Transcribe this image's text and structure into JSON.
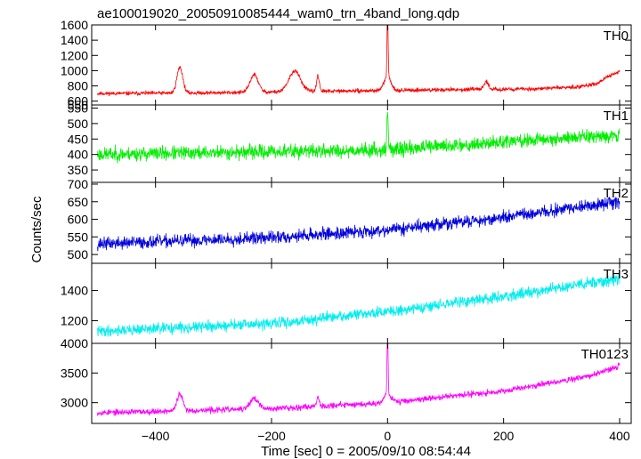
{
  "chart_data": {
    "type": "line",
    "title": "ae100019020_20050910085444_wam0_trn_4band_long.qdp",
    "xlabel": "Time [sec] 0 = 2005/09/10 08:54:44",
    "ylabel": "Counts/sec",
    "xlim": [
      -510,
      420
    ],
    "x_ticks": [
      -400,
      -200,
      0,
      200,
      400
    ],
    "x_tick_labels": [
      "−400",
      "−200",
      "0",
      "200",
      "400"
    ],
    "grid": false,
    "legend": "none",
    "panels": [
      {
        "label": "TH0",
        "color": "#ff0000",
        "ylim": [
          550,
          1600
        ],
        "y_ticks": [
          550,
          600,
          800,
          1000,
          1200,
          1400,
          1600
        ],
        "y_tick_labels": [
          "550",
          "600",
          "800",
          "1000",
          "1200",
          "1400",
          "1600"
        ],
        "baseline": [
          [
            -500,
            700
          ],
          [
            -300,
            710
          ],
          [
            -100,
            730
          ],
          [
            100,
            750
          ],
          [
            250,
            760
          ],
          [
            330,
            790
          ],
          [
            360,
            830
          ],
          [
            390,
            960
          ],
          [
            400,
            990
          ]
        ],
        "noise": 28,
        "features": [
          [
            -358,
            340,
            5
          ],
          [
            -230,
            230,
            7
          ],
          [
            -160,
            270,
            10
          ],
          [
            -120,
            200,
            2.5
          ],
          [
            0,
            900,
            0.9
          ],
          [
            0,
            180,
            6
          ],
          [
            170,
            100,
            4
          ]
        ],
        "seed": 11
      },
      {
        "label": "TH1",
        "color": "#00ee00",
        "ylim": [
          310,
          560
        ],
        "y_ticks": [
          350,
          400,
          450,
          500,
          550
        ],
        "y_tick_labels": [
          "350",
          "400",
          "450",
          "500",
          "550"
        ],
        "baseline": [
          [
            -500,
            400
          ],
          [
            0,
            415
          ],
          [
            200,
            440
          ],
          [
            400,
            465
          ]
        ],
        "noise": 25,
        "features": [
          [
            0,
            120,
            1.2
          ]
        ],
        "seed": 23
      },
      {
        "label": "TH2",
        "color": "#0000dd",
        "ylim": [
          475,
          705
        ],
        "y_ticks": [
          500,
          550,
          600,
          650,
          700
        ],
        "y_tick_labels": [
          "500",
          "550",
          "600",
          "650",
          "700"
        ],
        "baseline": [
          [
            -500,
            530
          ],
          [
            -200,
            548
          ],
          [
            0,
            570
          ],
          [
            200,
            605
          ],
          [
            400,
            650
          ]
        ],
        "noise": 20,
        "features": [],
        "seed": 37
      },
      {
        "label": "TH3",
        "color": "#00eeee",
        "ylim": [
          1050,
          1580
        ],
        "y_ticks": [
          1200,
          1400
        ],
        "y_tick_labels": [
          "1200",
          "1400"
        ],
        "baseline": [
          [
            -500,
            1130
          ],
          [
            -200,
            1180
          ],
          [
            0,
            1260
          ],
          [
            200,
            1360
          ],
          [
            400,
            1480
          ]
        ],
        "noise": 40,
        "features": [],
        "seed": 41
      },
      {
        "label": "TH0123",
        "color": "#ff00ff",
        "ylim": [
          2650,
          4000
        ],
        "y_ticks": [
          3000,
          3500,
          4000
        ],
        "y_tick_labels": [
          "3000",
          "3500",
          "4000"
        ],
        "baseline": [
          [
            -500,
            2830
          ],
          [
            -200,
            2900
          ],
          [
            0,
            3000
          ],
          [
            200,
            3200
          ],
          [
            350,
            3450
          ],
          [
            400,
            3620
          ]
        ],
        "noise": 55,
        "features": [
          [
            -358,
            280,
            5
          ],
          [
            -230,
            180,
            7
          ],
          [
            -120,
            150,
            2.5
          ],
          [
            0,
            1050,
            0.9
          ],
          [
            0,
            150,
            6
          ]
        ],
        "seed": 53
      }
    ]
  }
}
